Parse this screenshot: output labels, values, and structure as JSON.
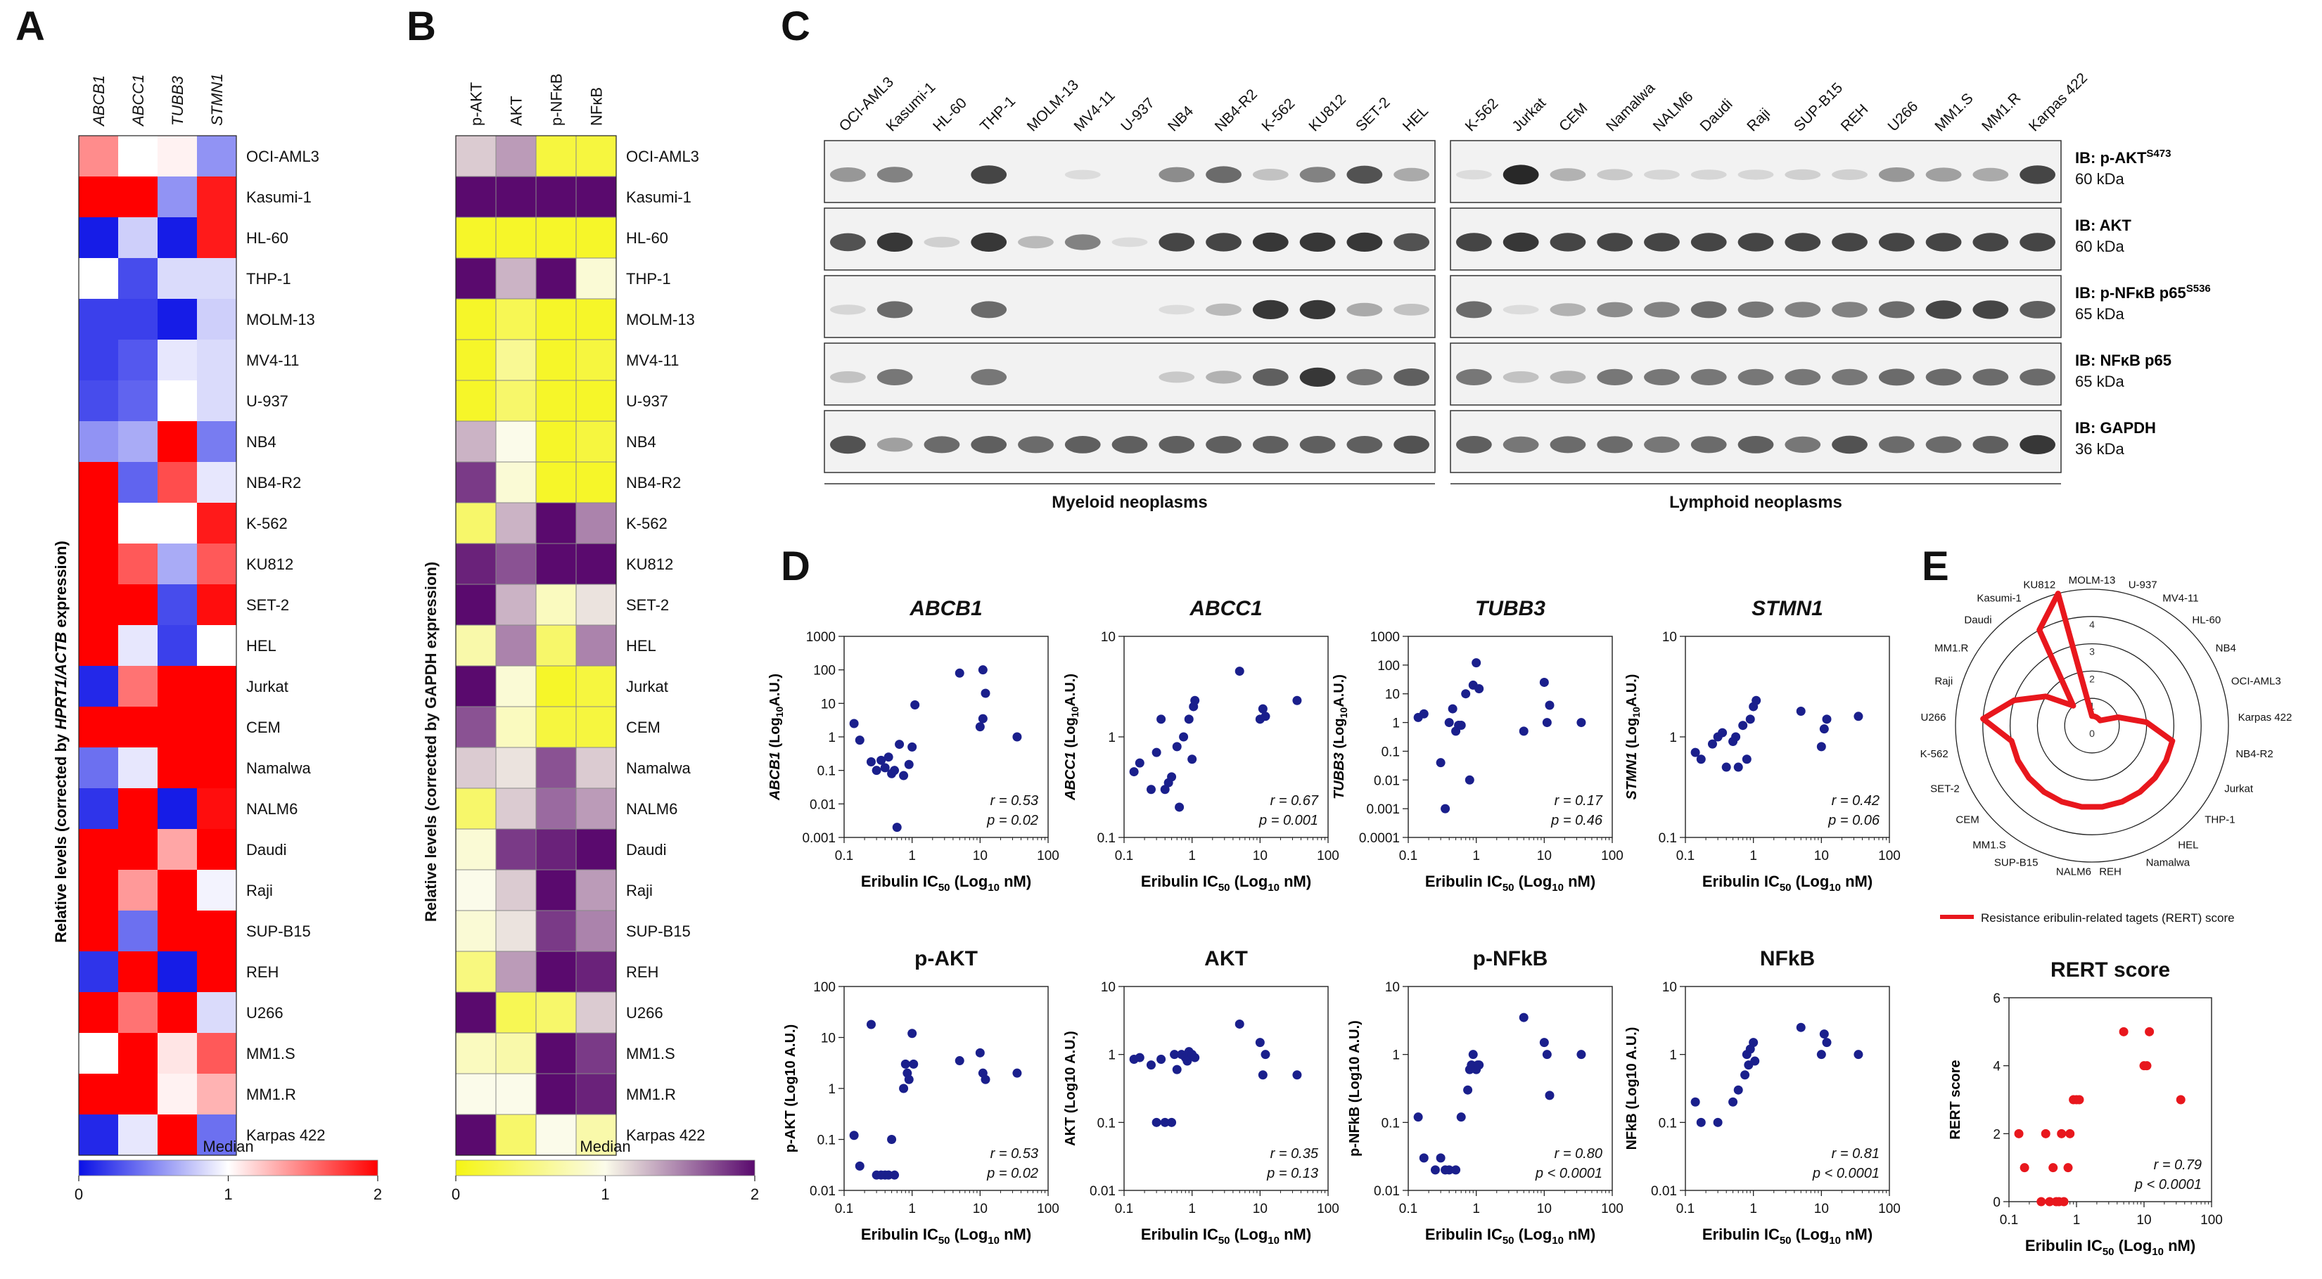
{
  "panels": {
    "A": "A",
    "B": "B",
    "C": "C",
    "D": "D",
    "E": "E"
  },
  "cell_lines": [
    "OCI-AML3",
    "Kasumi-1",
    "HL-60",
    "THP-1",
    "MOLM-13",
    "MV4-11",
    "U-937",
    "NB4",
    "NB4-R2",
    "K-562",
    "KU812",
    "SET-2",
    "HEL",
    "Jurkat",
    "CEM",
    "Namalwa",
    "NALM6",
    "Daudi",
    "Raji",
    "SUP-B15",
    "REH",
    "U266",
    "MM1.S",
    "MM1.R",
    "Karpas 422"
  ],
  "panelA": {
    "genes": [
      "ABCB1",
      "ABCC1",
      "TUBB3",
      "STMN1"
    ],
    "ylabel_pre": "Relative levels (corrected by ",
    "ylabel_genes": "HPRT1/ACTB",
    "ylabel_post": " expression)",
    "colorbar_title": "Median",
    "colorbar_ticks": [
      "0",
      "1",
      "2"
    ],
    "colors": {
      "low": "#0a10e6",
      "mid": "#ffffff",
      "high": "#ff0000"
    },
    "values": [
      [
        1.45,
        1.0,
        1.05,
        0.55
      ],
      [
        2.0,
        2.0,
        0.55,
        1.9
      ],
      [
        0.05,
        0.8,
        0.05,
        1.9
      ],
      [
        1.0,
        0.25,
        0.85,
        0.85
      ],
      [
        0.2,
        0.2,
        0.05,
        0.8
      ],
      [
        0.2,
        0.3,
        0.9,
        0.85
      ],
      [
        0.25,
        0.35,
        1.0,
        0.85
      ],
      [
        0.55,
        0.65,
        2.0,
        0.45
      ],
      [
        2.0,
        0.35,
        1.7,
        0.9
      ],
      [
        2.0,
        1.0,
        1.0,
        1.9
      ],
      [
        2.0,
        1.65,
        0.65,
        1.65
      ],
      [
        2.0,
        2.0,
        0.25,
        1.95
      ],
      [
        2.0,
        0.9,
        0.2,
        1.0
      ],
      [
        0.1,
        1.55,
        2.0,
        2.0
      ],
      [
        2.0,
        2.0,
        2.0,
        2.0
      ],
      [
        0.4,
        0.9,
        2.0,
        2.0
      ],
      [
        0.15,
        2.0,
        0.05,
        1.95
      ],
      [
        2.0,
        2.0,
        1.35,
        2.0
      ],
      [
        2.0,
        1.4,
        2.0,
        0.95
      ],
      [
        2.0,
        0.4,
        2.0,
        2.0
      ],
      [
        0.15,
        2.0,
        0.05,
        2.0
      ],
      [
        2.0,
        1.55,
        2.0,
        0.85
      ],
      [
        1.0,
        2.0,
        1.1,
        1.65
      ],
      [
        2.0,
        2.0,
        1.05,
        1.3
      ],
      [
        0.1,
        0.9,
        2.0,
        0.4
      ]
    ]
  },
  "panelB": {
    "proteins": [
      "p-AKT",
      "AKT",
      "p-NFκB",
      "NFκB"
    ],
    "ylabel": "Relative levels (corrected by GAPDH expression)",
    "colorbar_title": "Median",
    "colorbar_ticks": [
      "0",
      "1",
      "2"
    ],
    "colors": {
      "low": "#f5f514",
      "mid": "#fbfbea",
      "high": "#5a0a6e"
    },
    "values": [
      [
        1.2,
        1.4,
        0.2,
        0.2
      ],
      [
        2.0,
        2.0,
        2.0,
        2.0
      ],
      [
        0.1,
        0.1,
        0.1,
        0.1
      ],
      [
        2.0,
        1.3,
        2.0,
        0.9
      ],
      [
        0.1,
        0.3,
        0.1,
        0.1
      ],
      [
        0.1,
        0.6,
        0.1,
        0.2
      ],
      [
        0.1,
        0.4,
        0.1,
        0.1
      ],
      [
        1.3,
        1.0,
        0.1,
        0.2
      ],
      [
        1.8,
        0.9,
        0.1,
        0.1
      ],
      [
        0.4,
        1.3,
        2.0,
        1.5
      ],
      [
        1.9,
        1.7,
        2.0,
        2.0
      ],
      [
        2.0,
        1.3,
        0.8,
        1.1
      ],
      [
        0.7,
        1.5,
        0.4,
        1.5
      ],
      [
        2.0,
        0.9,
        0.1,
        0.2
      ],
      [
        1.7,
        0.8,
        0.2,
        0.2
      ],
      [
        1.2,
        1.1,
        1.7,
        1.2
      ],
      [
        0.4,
        1.2,
        1.6,
        1.4
      ],
      [
        0.9,
        1.8,
        1.9,
        2.0
      ],
      [
        1.0,
        1.2,
        2.0,
        1.4
      ],
      [
        0.9,
        1.1,
        1.8,
        1.5
      ],
      [
        0.5,
        1.4,
        2.0,
        1.9
      ],
      [
        2.0,
        0.3,
        0.4,
        1.2
      ],
      [
        0.8,
        0.7,
        2.0,
        1.8
      ],
      [
        1.0,
        1.0,
        2.0,
        1.9
      ],
      [
        2.0,
        0.4,
        1.0,
        0.7
      ]
    ]
  },
  "panelC": {
    "myeloid_lines": [
      "OCI-AML3",
      "Kasumi-1",
      "HL-60",
      "THP-1",
      "MOLM-13",
      "MV4-11",
      "U-937",
      "NB4",
      "NB4-R2",
      "K-562",
      "KU812",
      "SET-2",
      "HEL"
    ],
    "lymphoid_lines": [
      "K-562",
      "Jurkat",
      "CEM",
      "Namalwa",
      "NALM6",
      "Daudi",
      "Raji",
      "SUP-B15",
      "REH",
      "U266",
      "MM1.S",
      "MM1.R",
      "Karpas 422"
    ],
    "blots": [
      {
        "label": "IB: p-AKT",
        "sup": "S473",
        "kda": "60 kDa",
        "myeloid": [
          0.55,
          0.65,
          0,
          0.9,
          0,
          0.1,
          0,
          0.6,
          0.75,
          0.3,
          0.65,
          0.85,
          0.45
        ],
        "lymphoid": [
          0.1,
          1.0,
          0.4,
          0.25,
          0.15,
          0.15,
          0.15,
          0.2,
          0.2,
          0.55,
          0.5,
          0.45,
          0.9
        ]
      },
      {
        "label": "IB: AKT",
        "sup": "",
        "kda": "60 kDa",
        "myeloid": [
          0.85,
          0.95,
          0.2,
          0.95,
          0.35,
          0.65,
          0.1,
          0.9,
          0.9,
          0.95,
          0.95,
          0.95,
          0.85
        ],
        "lymphoid": [
          0.9,
          0.95,
          0.9,
          0.9,
          0.9,
          0.9,
          0.9,
          0.9,
          0.9,
          0.9,
          0.9,
          0.9,
          0.9
        ]
      },
      {
        "label": "IB: p-NFκB p65",
        "sup": "S536",
        "kda": "65 kDa",
        "myeloid": [
          0.15,
          0.75,
          0,
          0.75,
          0,
          0,
          0,
          0.1,
          0.35,
          0.95,
          0.95,
          0.45,
          0.3
        ],
        "lymphoid": [
          0.75,
          0.1,
          0.4,
          0.6,
          0.65,
          0.75,
          0.7,
          0.65,
          0.65,
          0.75,
          0.9,
          0.9,
          0.8
        ]
      },
      {
        "label": "IB: NFκB p65",
        "sup": "",
        "kda": "65 kDa",
        "myeloid": [
          0.3,
          0.7,
          0,
          0.7,
          0,
          0,
          0,
          0.25,
          0.4,
          0.8,
          0.95,
          0.7,
          0.8
        ],
        "lymphoid": [
          0.7,
          0.3,
          0.4,
          0.7,
          0.7,
          0.7,
          0.7,
          0.7,
          0.7,
          0.75,
          0.75,
          0.75,
          0.75
        ]
      },
      {
        "label": "IB: GAPDH",
        "sup": "",
        "kda": "36 kDa",
        "myeloid": [
          0.85,
          0.5,
          0.75,
          0.8,
          0.75,
          0.8,
          0.8,
          0.8,
          0.8,
          0.8,
          0.8,
          0.8,
          0.85
        ],
        "lymphoid": [
          0.8,
          0.7,
          0.75,
          0.75,
          0.7,
          0.75,
          0.8,
          0.7,
          0.85,
          0.75,
          0.75,
          0.8,
          0.95
        ]
      }
    ],
    "group_myeloid": "Myeloid neoplasms",
    "group_lymphoid": "Lymphoid neoplasms"
  },
  "chart_data": [
    {
      "type": "scatter",
      "title": "ABCB1",
      "italic": true,
      "ylabel_html": "ABCB1 (Log10A.U.)",
      "ylabel_gene": "ABCB1",
      "ylabel_unit": "A.U.",
      "xlabel": "Eribulin IC50 (Log10 nM)",
      "log_y": true,
      "ylim": [
        0.001,
        1000
      ],
      "yticks": [
        "0.001",
        "0.01",
        "0.1",
        "1",
        "10",
        "100",
        "1000"
      ],
      "xticks": [
        "0.1",
        "1",
        "10",
        "100"
      ],
      "r": "r = 0.53",
      "p": "p = 0.02",
      "x": [
        0.14,
        0.17,
        0.25,
        0.3,
        0.35,
        0.4,
        0.45,
        0.5,
        0.55,
        0.6,
        0.65,
        0.75,
        0.9,
        1.0,
        1.1,
        5,
        10,
        11,
        11,
        12,
        35
      ],
      "y": [
        2.5,
        0.8,
        0.18,
        0.1,
        0.2,
        0.12,
        0.25,
        0.08,
        0.1,
        0.002,
        0.6,
        0.07,
        0.15,
        0.5,
        9,
        80,
        2,
        3.5,
        100,
        20,
        1
      ]
    },
    {
      "type": "scatter",
      "title": "ABCC1",
      "italic": true,
      "ylabel_gene": "ABCC1",
      "ylabel_unit": "A.U.",
      "xlabel": "Eribulin IC50 (Log10 nM)",
      "log_y": true,
      "ylim": [
        0.1,
        10
      ],
      "yticks": [
        "0.1",
        "1",
        "10"
      ],
      "xticks": [
        "0.1",
        "1",
        "10",
        "100"
      ],
      "r": "r = 0.67",
      "p": "p = 0.001",
      "x": [
        0.14,
        0.17,
        0.25,
        0.3,
        0.35,
        0.4,
        0.45,
        0.5,
        0.6,
        0.65,
        0.75,
        0.9,
        1.0,
        1.05,
        1.1,
        5,
        10,
        11,
        12,
        35
      ],
      "y": [
        0.45,
        0.55,
        0.3,
        0.7,
        1.5,
        0.3,
        0.35,
        0.4,
        0.8,
        0.2,
        1,
        1.5,
        0.6,
        2,
        2.3,
        4.5,
        1.5,
        1.9,
        1.6,
        2.3
      ]
    },
    {
      "type": "scatter",
      "title": "TUBB3",
      "italic": true,
      "ylabel_gene": "TUBB3",
      "ylabel_unit": "A.U.",
      "xlabel": "Eribulin IC50 (Log10 nM)",
      "log_y": true,
      "ylim": [
        0.0001,
        1000
      ],
      "yticks": [
        "0.0001",
        "0.001",
        "0.01",
        "0.1",
        "1",
        "10",
        "100",
        "1000"
      ],
      "xticks": [
        "0.1",
        "1",
        "10",
        "100"
      ],
      "r": "r = 0.17",
      "p": "p = 0.46",
      "x": [
        0.14,
        0.17,
        0.3,
        0.35,
        0.4,
        0.45,
        0.5,
        0.55,
        0.6,
        0.7,
        0.8,
        0.9,
        1.0,
        1.1,
        5,
        10,
        11,
        12,
        35
      ],
      "y": [
        1.5,
        2,
        0.04,
        0.001,
        1,
        3,
        0.5,
        0.8,
        0.8,
        10,
        0.01,
        20,
        120,
        15,
        0.5,
        25,
        1,
        4,
        1
      ]
    },
    {
      "type": "scatter",
      "title": "STMN1",
      "italic": true,
      "ylabel_gene": "STMN1",
      "ylabel_unit": "A.U.",
      "xlabel": "Eribulin IC50 (Log10 nM)",
      "log_y": true,
      "ylim": [
        0.1,
        10
      ],
      "yticks": [
        "0.1",
        "1",
        "10"
      ],
      "xticks": [
        "0.1",
        "1",
        "10",
        "100"
      ],
      "r": "r = 0.42",
      "p": "p = 0.06",
      "x": [
        0.14,
        0.17,
        0.25,
        0.3,
        0.35,
        0.4,
        0.5,
        0.55,
        0.6,
        0.7,
        0.8,
        0.9,
        1.0,
        1.1,
        5,
        10,
        11,
        12,
        35
      ],
      "y": [
        0.7,
        0.6,
        0.85,
        1,
        1.1,
        0.5,
        0.9,
        1,
        0.5,
        1.3,
        0.6,
        1.5,
        2,
        2.3,
        1.8,
        0.8,
        1.2,
        1.5,
        1.6
      ]
    },
    {
      "type": "scatter",
      "title": "p-AKT",
      "italic": false,
      "ylabel": "p-AKT (Log10 A.U.)",
      "xlabel": "Eribulin IC50 (Log10 nM)",
      "log_y": true,
      "ylim": [
        0.01,
        100
      ],
      "yticks": [
        "0.01",
        "0.1",
        "1",
        "10",
        "100"
      ],
      "xticks": [
        "0.1",
        "1",
        "10",
        "100"
      ],
      "r": "r = 0.53",
      "p": "p = 0.02",
      "x": [
        0.14,
        0.17,
        0.25,
        0.3,
        0.35,
        0.4,
        0.45,
        0.5,
        0.55,
        0.75,
        0.8,
        0.85,
        0.9,
        1.0,
        1.05,
        5,
        10,
        11,
        12,
        35
      ],
      "y": [
        0.12,
        0.03,
        18,
        0.02,
        0.02,
        0.02,
        0.02,
        0.1,
        0.02,
        1,
        3,
        2,
        1.5,
        12,
        3,
        3.5,
        5,
        2,
        1.5,
        2
      ]
    },
    {
      "type": "scatter",
      "title": "AKT",
      "italic": false,
      "ylabel": "AKT (Log10 A.U.)",
      "xlabel": "Eribulin IC50 (Log10 nM)",
      "log_y": true,
      "ylim": [
        0.01,
        10
      ],
      "yticks": [
        "0.01",
        "0.1",
        "1",
        "10"
      ],
      "xticks": [
        "0.1",
        "1",
        "10",
        "100"
      ],
      "r": "r = 0.35",
      "p": "p = 0.13",
      "x": [
        0.14,
        0.17,
        0.25,
        0.3,
        0.35,
        0.4,
        0.5,
        0.55,
        0.6,
        0.7,
        0.8,
        0.85,
        0.9,
        1.0,
        1.1,
        5,
        10,
        11,
        12,
        35
      ],
      "y": [
        0.85,
        0.9,
        0.7,
        0.1,
        0.85,
        0.1,
        0.1,
        1,
        0.6,
        1,
        0.9,
        0.8,
        1.1,
        1,
        0.9,
        2.8,
        1.5,
        0.5,
        1,
        0.5
      ]
    },
    {
      "type": "scatter",
      "title": "p-NFkB",
      "italic": false,
      "ylabel": "p-NFkB (Log10 A.U.)",
      "xlabel": "Eribulin IC50 (Log10 nM)",
      "log_y": true,
      "ylim": [
        0.01,
        10
      ],
      "yticks": [
        "0.01",
        "0.1",
        "1",
        "10"
      ],
      "xticks": [
        "0.1",
        "1",
        "10",
        "100"
      ],
      "r": "r = 0.80",
      "p": "p < 0.0001",
      "x": [
        0.14,
        0.17,
        0.25,
        0.3,
        0.35,
        0.4,
        0.5,
        0.6,
        0.75,
        0.8,
        0.85,
        0.9,
        1.0,
        1.05,
        1.1,
        5,
        10,
        11,
        12,
        35
      ],
      "y": [
        0.12,
        0.03,
        0.02,
        0.03,
        0.02,
        0.02,
        0.02,
        0.12,
        0.3,
        0.6,
        0.7,
        1,
        0.6,
        0.7,
        0.7,
        3.5,
        1.5,
        1,
        0.25,
        1
      ]
    },
    {
      "type": "scatter",
      "title": "NFkB",
      "italic": false,
      "ylabel": "NFkB (Log10 A.U.)",
      "xlabel": "Eribulin IC50 (Log10 nM)",
      "log_y": true,
      "ylim": [
        0.01,
        10
      ],
      "yticks": [
        "0.01",
        "0.1",
        "1",
        "10"
      ],
      "xticks": [
        "0.1",
        "1",
        "10",
        "100"
      ],
      "r": "r = 0.81",
      "p": "p < 0.0001",
      "x": [
        0.14,
        0.17,
        0.3,
        0.5,
        0.6,
        0.75,
        0.8,
        0.85,
        0.9,
        1.0,
        1.05,
        5,
        10,
        11,
        12,
        35
      ],
      "y": [
        0.2,
        0.1,
        0.1,
        0.2,
        0.3,
        0.5,
        1,
        0.7,
        1.2,
        1.5,
        0.8,
        2.5,
        1,
        2,
        1.5,
        1
      ]
    },
    {
      "type": "radar",
      "title": "",
      "order": [
        "MOLM-13",
        "U-937",
        "MV4-11",
        "HL-60",
        "NB4",
        "OCI-AML3",
        "Karpas 422",
        "NB4-R2",
        "Jurkat",
        "THP-1",
        "HEL",
        "Namalwa",
        "REH",
        "NALM6",
        "SUP-B15",
        "MM1.S",
        "CEM",
        "SET-2",
        "K-562",
        "U266",
        "Raji",
        "MM1.R",
        "Daudi",
        "Kasumi-1",
        "KU812"
      ],
      "values": [
        0,
        0,
        0,
        0,
        0,
        1,
        2,
        3,
        3,
        3,
        3,
        3,
        3,
        3,
        3,
        3,
        3,
        3,
        3,
        4,
        3,
        2,
        1,
        4,
        5
      ],
      "rmax": 5,
      "ring_labels": [
        "0",
        "1",
        "2",
        "3",
        "4"
      ],
      "legend": "Resistance eribulin-related tagets (RERT) score",
      "line_color": "#e8171d"
    },
    {
      "type": "scatter",
      "title": "RERT score",
      "italic": false,
      "ylabel": "RERT score",
      "xlabel": "Eribulin IC50 (Log10 nM)",
      "log_y": false,
      "ylim": [
        0,
        6
      ],
      "yticks": [
        "0",
        "2",
        "4",
        "6"
      ],
      "xticks": [
        "0.1",
        "1",
        "10",
        "100"
      ],
      "r": "r = 0.79",
      "p": "p < 0.0001",
      "color": "#e8171d",
      "x": [
        0.14,
        0.17,
        0.3,
        0.35,
        0.4,
        0.45,
        0.5,
        0.55,
        0.6,
        0.65,
        0.75,
        0.8,
        0.9,
        1.0,
        1.1,
        5,
        10,
        11,
        12,
        35
      ],
      "y": [
        2,
        1,
        0,
        2,
        0,
        1,
        0,
        0,
        2,
        0,
        1,
        2,
        3,
        3,
        3,
        5,
        4,
        4,
        5,
        3
      ]
    }
  ],
  "axis_common": {
    "ic50_pre": "Eribulin IC",
    "ic50_sub": "50",
    "ic50_mid": " (Log",
    "ic50_sub2": "10",
    "ic50_post": " nM)"
  }
}
